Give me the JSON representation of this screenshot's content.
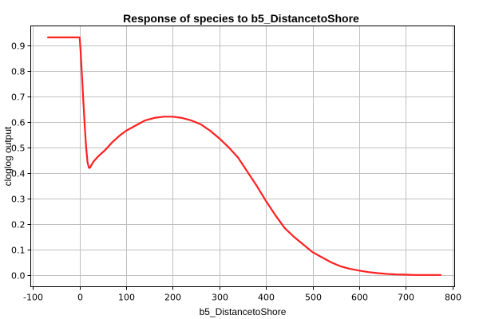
{
  "chart_data": {
    "type": "line",
    "title": "Response of species to b5_DistancetoShore",
    "xlabel": "b5_DistancetoShore",
    "ylabel": "cloglog output",
    "xlim": [
      -105,
      805
    ],
    "ylim": [
      -0.045,
      0.975
    ],
    "xticks": [
      -100,
      0,
      100,
      200,
      300,
      400,
      500,
      600,
      700,
      800
    ],
    "yticks": [
      0.0,
      0.1,
      0.2,
      0.3,
      0.4,
      0.5,
      0.6,
      0.7,
      0.8,
      0.9
    ],
    "grid": true,
    "line_color": "#ff2020",
    "series": [
      {
        "x": [
          -68,
          -40,
          -10,
          0,
          2,
          5,
          8,
          11,
          14,
          17,
          20,
          22,
          25,
          30,
          40,
          55,
          70,
          85,
          100,
          120,
          140,
          160,
          180,
          200,
          220,
          240,
          260,
          280,
          300,
          320,
          340,
          360,
          380,
          400,
          420,
          440,
          460,
          480,
          500,
          520,
          540,
          560,
          580,
          600,
          620,
          640,
          660,
          680,
          700,
          720,
          740,
          760,
          775
        ],
        "y": [
          0.93,
          0.93,
          0.93,
          0.93,
          0.88,
          0.78,
          0.68,
          0.58,
          0.5,
          0.44,
          0.42,
          0.42,
          0.43,
          0.445,
          0.465,
          0.49,
          0.52,
          0.545,
          0.565,
          0.585,
          0.605,
          0.615,
          0.62,
          0.62,
          0.615,
          0.605,
          0.59,
          0.565,
          0.535,
          0.5,
          0.46,
          0.405,
          0.35,
          0.29,
          0.235,
          0.185,
          0.15,
          0.12,
          0.09,
          0.07,
          0.05,
          0.035,
          0.025,
          0.018,
          0.012,
          0.008,
          0.005,
          0.003,
          0.002,
          0.001,
          0.001,
          0.001,
          0.001
        ]
      }
    ]
  }
}
